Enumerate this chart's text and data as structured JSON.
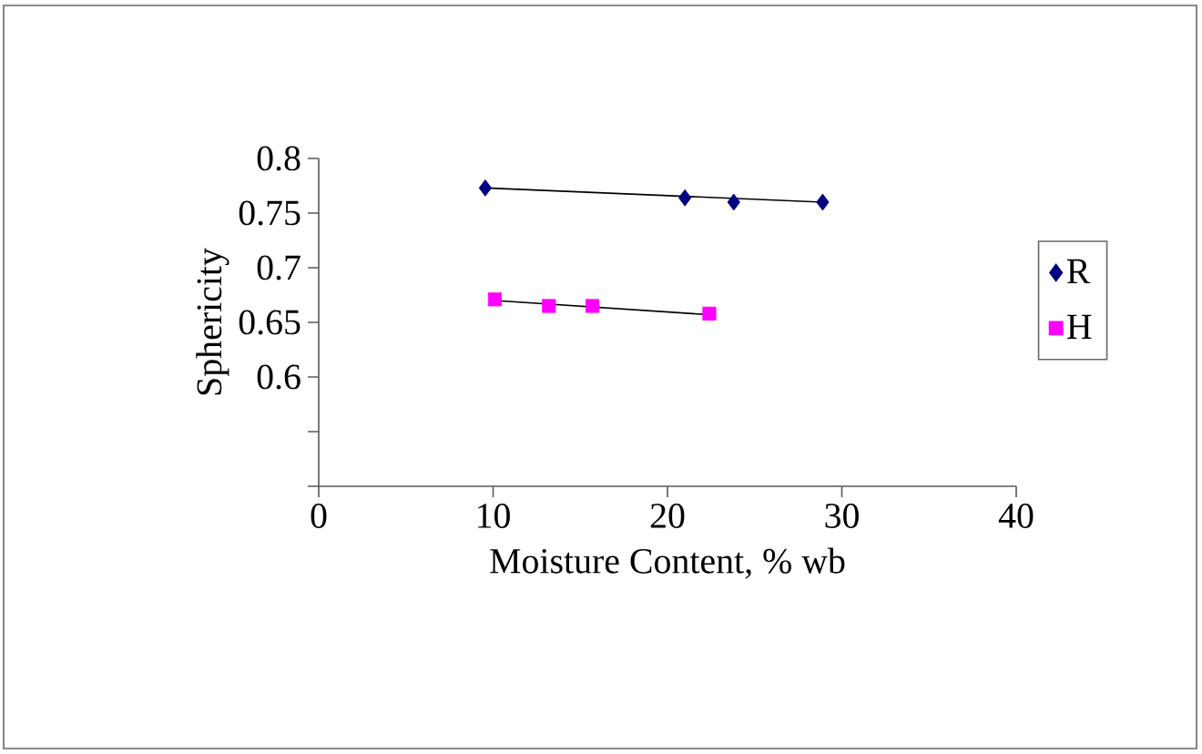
{
  "chart_data": {
    "type": "scatter",
    "xlabel": "Moisture Content, % wb",
    "ylabel": "Sphericity",
    "xlim": [
      0,
      40
    ],
    "xticks": [
      0,
      10,
      20,
      30,
      40
    ],
    "ylim": [
      0.5,
      0.8
    ],
    "yticks": [
      {
        "value": 0.5,
        "label": null
      },
      {
        "value": 0.55,
        "label": null
      },
      0.6,
      0.65,
      0.7,
      0.75,
      0.8
    ],
    "grid": false,
    "legend": "right",
    "series": [
      {
        "name": "R",
        "marker": "diamond",
        "color": "#000080",
        "x": [
          9.55,
          21.0,
          23.8,
          28.9
        ],
        "values": [
          0.773,
          0.764,
          0.76,
          0.76
        ]
      },
      {
        "name": "H",
        "marker": "square",
        "color": "#ff00ff",
        "x": [
          10.1,
          13.2,
          15.7,
          22.4
        ],
        "values": [
          0.671,
          0.665,
          0.665,
          0.658
        ]
      },
      {
        "type": "line",
        "marker": "none",
        "color": "#000000",
        "x": [
          9.55,
          28.9
        ],
        "values": [
          0.773,
          0.76
        ]
      },
      {
        "type": "line",
        "marker": "none",
        "color": "#000000",
        "x": [
          10.1,
          22.4
        ],
        "values": [
          0.67,
          0.657
        ]
      }
    ]
  }
}
